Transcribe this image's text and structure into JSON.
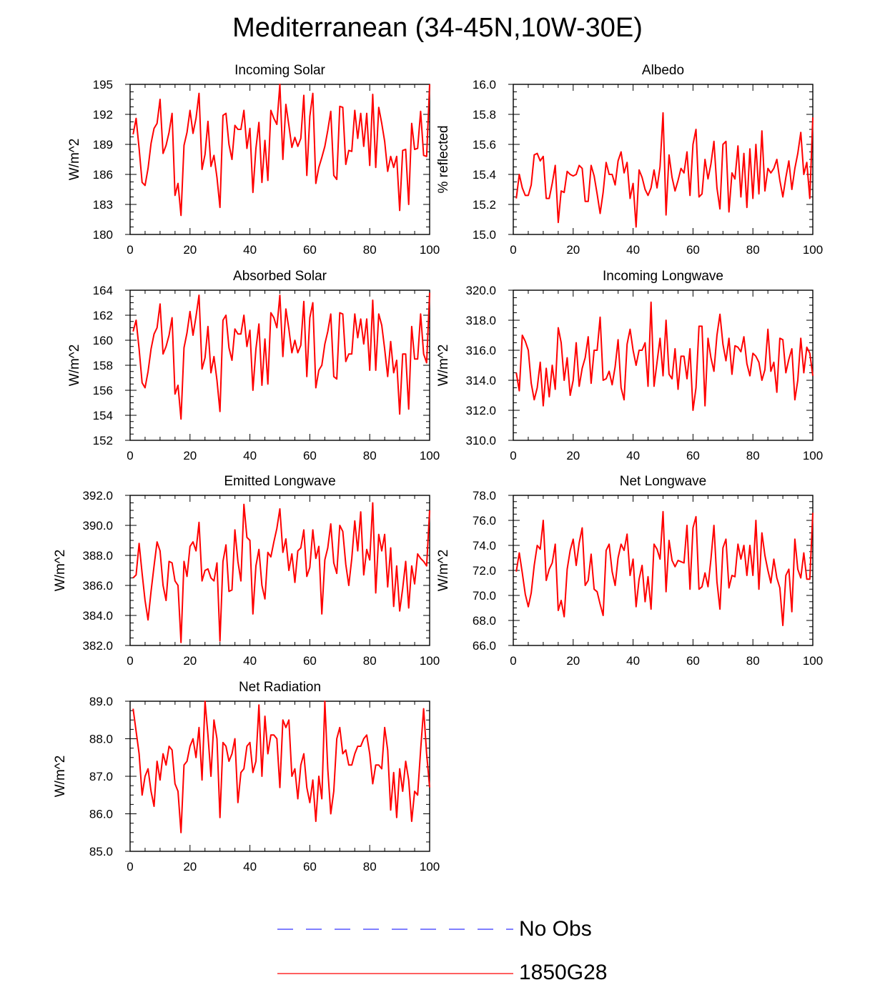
{
  "title": "Mediterranean (34-45N,10W-30E)",
  "legend": [
    {
      "label": "No Obs",
      "color": "#3333ff",
      "dash": true
    },
    {
      "label": "1850G28",
      "color": "#ff0000",
      "dash": false
    }
  ],
  "chart_data": [
    {
      "type": "line",
      "title": "Incoming Solar",
      "ylabel": "W/m^2",
      "xlabel": "",
      "xlim": [
        0,
        100
      ],
      "ylim": [
        180,
        195
      ],
      "xticks": [
        0,
        20,
        40,
        60,
        80,
        100
      ],
      "xtick_labels": [
        "0",
        "20",
        "40",
        "60",
        "80",
        "100"
      ],
      "yticks": [
        180,
        183,
        186,
        189,
        192,
        195
      ],
      "ytick_labels": [
        "180",
        "183",
        "186",
        "189",
        "192",
        "195"
      ],
      "series": [
        {
          "name": "1850G28",
          "x_start": 1,
          "color": "#ff0000",
          "values": [
            190.0,
            191.6,
            188.6,
            185.2,
            184.9,
            186.6,
            189.1,
            190.6,
            191.1,
            193.5,
            188.1,
            188.9,
            190.2,
            192.1,
            183.9,
            185.1,
            181.9,
            188.9,
            190.2,
            192.4,
            190.1,
            191.6,
            194.1,
            186.5,
            188.0,
            191.3,
            186.8,
            187.9,
            185.7,
            182.7,
            191.9,
            192.1,
            189.0,
            187.5,
            190.9,
            190.5,
            190.5,
            192.4,
            188.6,
            190.6,
            184.2,
            188.6,
            191.2,
            185.2,
            189.4,
            185.4,
            192.4,
            191.6,
            191.0,
            195.0,
            187.5,
            193.0,
            190.9,
            188.7,
            189.7,
            188.8,
            189.6,
            193.9,
            185.9,
            191.8,
            194.1,
            185.1,
            186.7,
            187.7,
            188.8,
            190.4,
            192.3,
            185.9,
            185.5,
            192.8,
            192.7,
            187.0,
            188.4,
            188.3,
            192.4,
            189.6,
            192.1,
            188.8,
            192.1,
            186.9,
            194.0,
            186.7,
            192.7,
            191.1,
            189.3,
            186.3,
            187.8,
            186.7,
            187.8,
            182.4,
            188.4,
            188.5,
            183.0,
            191.1,
            188.5,
            188.6,
            192.3,
            187.9,
            187.8,
            195.0
          ]
        }
      ]
    },
    {
      "type": "line",
      "title": "Albedo",
      "ylabel": "% reflected",
      "xlabel": "",
      "xlim": [
        0,
        100
      ],
      "ylim": [
        15.0,
        16.0
      ],
      "xticks": [
        0,
        20,
        40,
        60,
        80,
        100
      ],
      "xtick_labels": [
        "0",
        "20",
        "40",
        "60",
        "80",
        "100"
      ],
      "yticks": [
        15.0,
        15.2,
        15.4,
        15.6,
        15.8,
        16.0
      ],
      "ytick_labels": [
        "15.0",
        "15.2",
        "15.4",
        "15.6",
        "15.8",
        "16.0"
      ],
      "series": [
        {
          "name": "1850G28",
          "x_start": 1,
          "color": "#ff0000",
          "values": [
            15.24,
            15.4,
            15.31,
            15.26,
            15.26,
            15.33,
            15.53,
            15.54,
            15.49,
            15.52,
            15.24,
            15.24,
            15.34,
            15.46,
            15.08,
            15.29,
            15.28,
            15.42,
            15.4,
            15.39,
            15.4,
            15.46,
            15.44,
            15.22,
            15.22,
            15.46,
            15.39,
            15.27,
            15.14,
            15.28,
            15.48,
            15.4,
            15.4,
            15.33,
            15.49,
            15.55,
            15.41,
            15.48,
            15.24,
            15.34,
            15.05,
            15.43,
            15.38,
            15.3,
            15.26,
            15.31,
            15.43,
            15.31,
            15.45,
            15.81,
            15.13,
            15.53,
            15.38,
            15.29,
            15.36,
            15.44,
            15.41,
            15.55,
            15.26,
            15.6,
            15.7,
            15.25,
            15.27,
            15.5,
            15.37,
            15.47,
            15.62,
            15.31,
            15.17,
            15.6,
            15.62,
            15.15,
            15.41,
            15.37,
            15.59,
            15.25,
            15.54,
            15.18,
            15.57,
            15.24,
            15.6,
            15.27,
            15.69,
            15.29,
            15.44,
            15.41,
            15.44,
            15.5,
            15.36,
            15.25,
            15.38,
            15.49,
            15.3,
            15.44,
            15.54,
            15.68,
            15.4,
            15.48,
            15.24,
            15.78
          ]
        }
      ]
    },
    {
      "type": "line",
      "title": "Absorbed Solar",
      "ylabel": "W/m^2",
      "xlabel": "",
      "xlim": [
        0,
        100
      ],
      "ylim": [
        152,
        164
      ],
      "xticks": [
        0,
        20,
        40,
        60,
        80,
        100
      ],
      "xtick_labels": [
        "0",
        "20",
        "40",
        "60",
        "80",
        "100"
      ],
      "yticks": [
        152,
        154,
        156,
        158,
        160,
        162,
        164
      ],
      "ytick_labels": [
        "152",
        "154",
        "156",
        "158",
        "160",
        "162",
        "164"
      ],
      "series": [
        {
          "name": "1850G28",
          "x_start": 1,
          "color": "#ff0000",
          "values": [
            160.7,
            161.6,
            159.3,
            156.6,
            156.2,
            157.5,
            159.3,
            160.5,
            161.0,
            162.9,
            158.9,
            159.5,
            160.4,
            161.8,
            155.7,
            156.4,
            153.7,
            159.4,
            160.6,
            162.3,
            160.4,
            161.9,
            163.6,
            157.7,
            158.6,
            161.1,
            157.4,
            158.7,
            156.8,
            154.3,
            161.6,
            162.0,
            159.4,
            158.4,
            160.9,
            160.5,
            160.5,
            162.0,
            159.5,
            160.8,
            156.0,
            159.3,
            161.3,
            156.4,
            160.1,
            156.5,
            162.2,
            161.8,
            161.0,
            163.6,
            158.7,
            162.5,
            160.9,
            159.0,
            160.0,
            159.0,
            159.6,
            163.1,
            157.1,
            161.8,
            163.0,
            156.2,
            157.6,
            158.0,
            159.7,
            160.7,
            162.1,
            157.1,
            156.9,
            162.2,
            162.1,
            158.3,
            158.9,
            158.9,
            162.1,
            160.2,
            161.7,
            159.7,
            161.7,
            157.6,
            163.2,
            157.6,
            162.1,
            161.2,
            159.3,
            157.1,
            159.9,
            157.4,
            158.4,
            154.1,
            158.9,
            158.9,
            154.5,
            161.1,
            158.5,
            158.5,
            162.1,
            158.9,
            158.2,
            163.8
          ]
        }
      ]
    },
    {
      "type": "line",
      "title": "Incoming Longwave",
      "ylabel": "W/m^2",
      "xlabel": "",
      "xlim": [
        0,
        100
      ],
      "ylim": [
        310.0,
        320.0
      ],
      "xticks": [
        0,
        20,
        40,
        60,
        80,
        100
      ],
      "xtick_labels": [
        "0",
        "20",
        "40",
        "60",
        "80",
        "100"
      ],
      "yticks": [
        310.0,
        312.0,
        314.0,
        316.0,
        318.0,
        320.0
      ],
      "ytick_labels": [
        "310.0",
        "312.0",
        "314.0",
        "316.0",
        "318.0",
        "320.0"
      ],
      "series": [
        {
          "name": "1850G28",
          "x_start": 1,
          "color": "#ff0000",
          "values": [
            314.5,
            313.3,
            317.0,
            316.6,
            316.0,
            313.8,
            312.7,
            313.5,
            315.2,
            312.3,
            314.8,
            312.9,
            315.0,
            313.4,
            317.5,
            316.5,
            314.0,
            315.5,
            313.0,
            314.0,
            316.5,
            313.6,
            314.8,
            315.5,
            316.9,
            313.8,
            316.0,
            316.0,
            318.2,
            314.0,
            314.1,
            314.6,
            313.7,
            314.9,
            316.7,
            313.5,
            312.7,
            316.4,
            317.4,
            316.0,
            315.0,
            316.0,
            316.0,
            316.5,
            313.6,
            319.2,
            313.6,
            315.2,
            316.8,
            314.3,
            318.0,
            314.4,
            314.1,
            316.1,
            313.4,
            315.6,
            315.6,
            314.1,
            316.1,
            312.0,
            313.5,
            317.6,
            317.6,
            312.3,
            316.8,
            315.5,
            314.6,
            317.0,
            318.4,
            316.4,
            315.3,
            316.8,
            314.4,
            316.3,
            316.2,
            315.9,
            316.9,
            315.1,
            314.3,
            315.8,
            315.6,
            315.2,
            314.0,
            314.7,
            317.4,
            314.6,
            315.2,
            313.2,
            316.8,
            316.7,
            314.5,
            315.4,
            316.1,
            312.7,
            314.0,
            316.8,
            314.5,
            316.2,
            315.8,
            314.3
          ]
        }
      ]
    },
    {
      "type": "line",
      "title": "Emitted Longwave",
      "ylabel": "W/m^2",
      "xlabel": "",
      "xlim": [
        0,
        100
      ],
      "ylim": [
        382.0,
        392.0
      ],
      "xticks": [
        0,
        20,
        40,
        60,
        80,
        100
      ],
      "xtick_labels": [
        "0",
        "20",
        "40",
        "60",
        "80",
        "100"
      ],
      "yticks": [
        382.0,
        384.0,
        386.0,
        388.0,
        390.0,
        392.0
      ],
      "ytick_labels": [
        "382.0",
        "384.0",
        "386.0",
        "388.0",
        "390.0",
        "392.0"
      ],
      "series": [
        {
          "name": "1850G28",
          "x_start": 1,
          "color": "#ff0000",
          "values": [
            386.5,
            386.7,
            388.8,
            386.8,
            385.0,
            383.7,
            385.6,
            387.3,
            388.9,
            388.3,
            386.0,
            385.0,
            387.6,
            387.5,
            386.3,
            386.0,
            382.2,
            387.6,
            386.6,
            388.6,
            388.9,
            388.3,
            390.2,
            386.3,
            387.0,
            387.1,
            386.5,
            386.3,
            387.5,
            382.3,
            387.6,
            388.7,
            385.6,
            385.7,
            389.7,
            387.6,
            386.3,
            391.4,
            389.2,
            389.0,
            384.1,
            387.3,
            388.4,
            386.0,
            385.1,
            388.2,
            387.9,
            388.9,
            389.8,
            391.1,
            388.2,
            389.1,
            387.0,
            388.1,
            386.2,
            388.3,
            388.5,
            389.7,
            386.6,
            387.2,
            389.7,
            387.8,
            388.6,
            384.1,
            387.7,
            388.5,
            390.1,
            387.5,
            386.8,
            390.0,
            389.6,
            387.4,
            386.0,
            387.8,
            390.3,
            388.3,
            390.9,
            386.7,
            388.4,
            387.7,
            391.5,
            385.5,
            389.4,
            388.3,
            389.4,
            385.9,
            388.5,
            384.6,
            387.3,
            384.3,
            385.8,
            387.6,
            384.5,
            387.3,
            386.1,
            388.1,
            387.8,
            387.6,
            387.3,
            391.0
          ]
        }
      ]
    },
    {
      "type": "line",
      "title": "Net Longwave",
      "ylabel": "W/m^2",
      "xlabel": "",
      "xlim": [
        0,
        100
      ],
      "ylim": [
        66.0,
        78.0
      ],
      "xticks": [
        0,
        20,
        40,
        60,
        80,
        100
      ],
      "xtick_labels": [
        "0",
        "20",
        "40",
        "60",
        "80",
        "100"
      ],
      "yticks": [
        66.0,
        68.0,
        70.0,
        72.0,
        74.0,
        76.0,
        78.0
      ],
      "ytick_labels": [
        "66.0",
        "68.0",
        "70.0",
        "72.0",
        "74.0",
        "76.0",
        "78.0"
      ],
      "series": [
        {
          "name": "1850G28",
          "x_start": 1,
          "color": "#ff0000",
          "values": [
            71.9,
            73.4,
            71.8,
            70.1,
            69.1,
            70.2,
            72.4,
            74.0,
            73.7,
            76.0,
            71.2,
            72.1,
            72.6,
            74.1,
            68.8,
            69.6,
            68.3,
            72.1,
            73.6,
            74.5,
            72.4,
            74.2,
            75.4,
            70.8,
            71.2,
            73.3,
            70.5,
            70.3,
            69.3,
            68.4,
            73.6,
            74.1,
            71.9,
            70.8,
            73.0,
            74.1,
            73.6,
            74.9,
            71.6,
            72.9,
            69.1,
            71.3,
            72.4,
            69.5,
            71.5,
            68.9,
            74.1,
            73.7,
            72.9,
            76.7,
            70.3,
            74.4,
            72.8,
            72.3,
            72.8,
            72.7,
            72.6,
            75.6,
            70.5,
            75.4,
            76.3,
            70.5,
            70.7,
            71.8,
            70.7,
            72.9,
            75.6,
            71.1,
            68.9,
            73.8,
            74.5,
            70.6,
            71.6,
            71.5,
            74.1,
            72.9,
            74.0,
            71.6,
            74.0,
            71.6,
            76.0,
            70.5,
            75.0,
            73.2,
            72.0,
            71.0,
            72.9,
            71.4,
            70.6,
            67.6,
            71.6,
            72.1,
            68.7,
            74.5,
            72.1,
            71.4,
            73.4,
            71.3,
            71.3,
            76.6
          ]
        }
      ]
    },
    {
      "type": "line",
      "title": "Net Radiation",
      "ylabel": "W/m^2",
      "xlabel": "",
      "xlim": [
        0,
        100
      ],
      "ylim": [
        85.0,
        89.0
      ],
      "xticks": [
        0,
        20,
        40,
        60,
        80,
        100
      ],
      "xtick_labels": [
        "0",
        "20",
        "40",
        "60",
        "80",
        "100"
      ],
      "yticks": [
        85.0,
        86.0,
        87.0,
        88.0,
        89.0
      ],
      "ytick_labels": [
        "85.0",
        "86.0",
        "87.0",
        "88.0",
        "89.0"
      ],
      "series": [
        {
          "name": "1850G28",
          "x_start": 1,
          "color": "#ff0000",
          "values": [
            88.8,
            88.2,
            87.6,
            86.5,
            87.0,
            87.2,
            86.6,
            86.2,
            87.4,
            86.9,
            87.6,
            87.3,
            87.8,
            87.7,
            86.8,
            86.6,
            85.5,
            87.3,
            87.4,
            87.8,
            88.0,
            87.5,
            88.3,
            86.9,
            89.0,
            88.1,
            87.0,
            88.5,
            88.0,
            85.9,
            87.9,
            87.8,
            87.4,
            87.6,
            88.0,
            86.3,
            87.1,
            87.2,
            87.8,
            87.9,
            87.1,
            87.4,
            88.9,
            87.0,
            88.6,
            87.6,
            88.1,
            88.1,
            88.0,
            86.7,
            88.5,
            88.3,
            88.5,
            87.0,
            87.2,
            86.4,
            87.3,
            87.6,
            86.7,
            86.3,
            86.9,
            85.8,
            87.0,
            86.4,
            89.0,
            87.2,
            86.0,
            86.6,
            88.0,
            88.3,
            87.6,
            87.7,
            87.3,
            87.3,
            87.6,
            87.8,
            87.8,
            88.0,
            88.1,
            87.6,
            86.8,
            87.3,
            87.3,
            87.2,
            88.3,
            87.7,
            86.1,
            87.1,
            85.9,
            87.2,
            86.6,
            87.4,
            86.9,
            85.8,
            86.6,
            86.5,
            87.7,
            88.8,
            87.6,
            86.7
          ]
        }
      ]
    }
  ]
}
